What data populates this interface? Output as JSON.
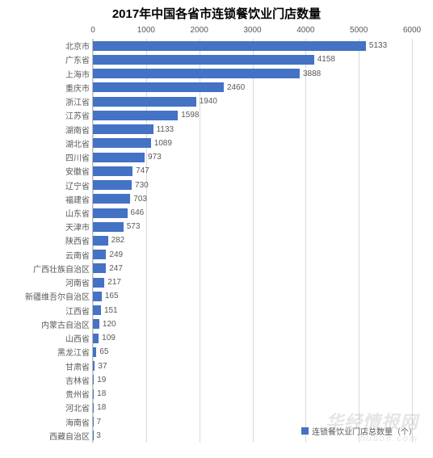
{
  "chart": {
    "type": "bar-horizontal",
    "title": "2017年中国各省市连锁餐饮业门店数量",
    "title_fontsize": 15,
    "title_color": "#000000",
    "background_color": "#ffffff",
    "bar_color": "#4472c4",
    "axis_label_color": "#595959",
    "grid_color": "#d9d9d9",
    "axis_line_color": "#bfbfbf",
    "label_fontsize": 10,
    "value_fontsize": 10,
    "xaxis": {
      "min": 0,
      "max": 6000,
      "step": 1000
    },
    "categories": [
      "北京市",
      "广东省",
      "上海市",
      "重庆市",
      "浙江省",
      "江苏省",
      "湖南省",
      "湖北省",
      "四川省",
      "安徽省",
      "辽宁省",
      "福建省",
      "山东省",
      "天津市",
      "陕西省",
      "云南省",
      "广西壮族自治区",
      "河南省",
      "新疆维吾尔自治区",
      "江西省",
      "内蒙古自治区",
      "山西省",
      "黑龙江省",
      "甘肃省",
      "吉林省",
      "贵州省",
      "河北省",
      "海南省",
      "西藏自治区"
    ],
    "values": [
      5133,
      4158,
      3888,
      2460,
      1940,
      1598,
      1133,
      1089,
      973,
      747,
      730,
      703,
      646,
      573,
      282,
      249,
      247,
      217,
      165,
      151,
      120,
      109,
      65,
      37,
      19,
      18,
      18,
      7,
      3
    ],
    "legend_label": "连锁餐饮业门店总数量（个）",
    "watermark_main": "华经情报网",
    "watermark_sub": "huaon.com"
  }
}
